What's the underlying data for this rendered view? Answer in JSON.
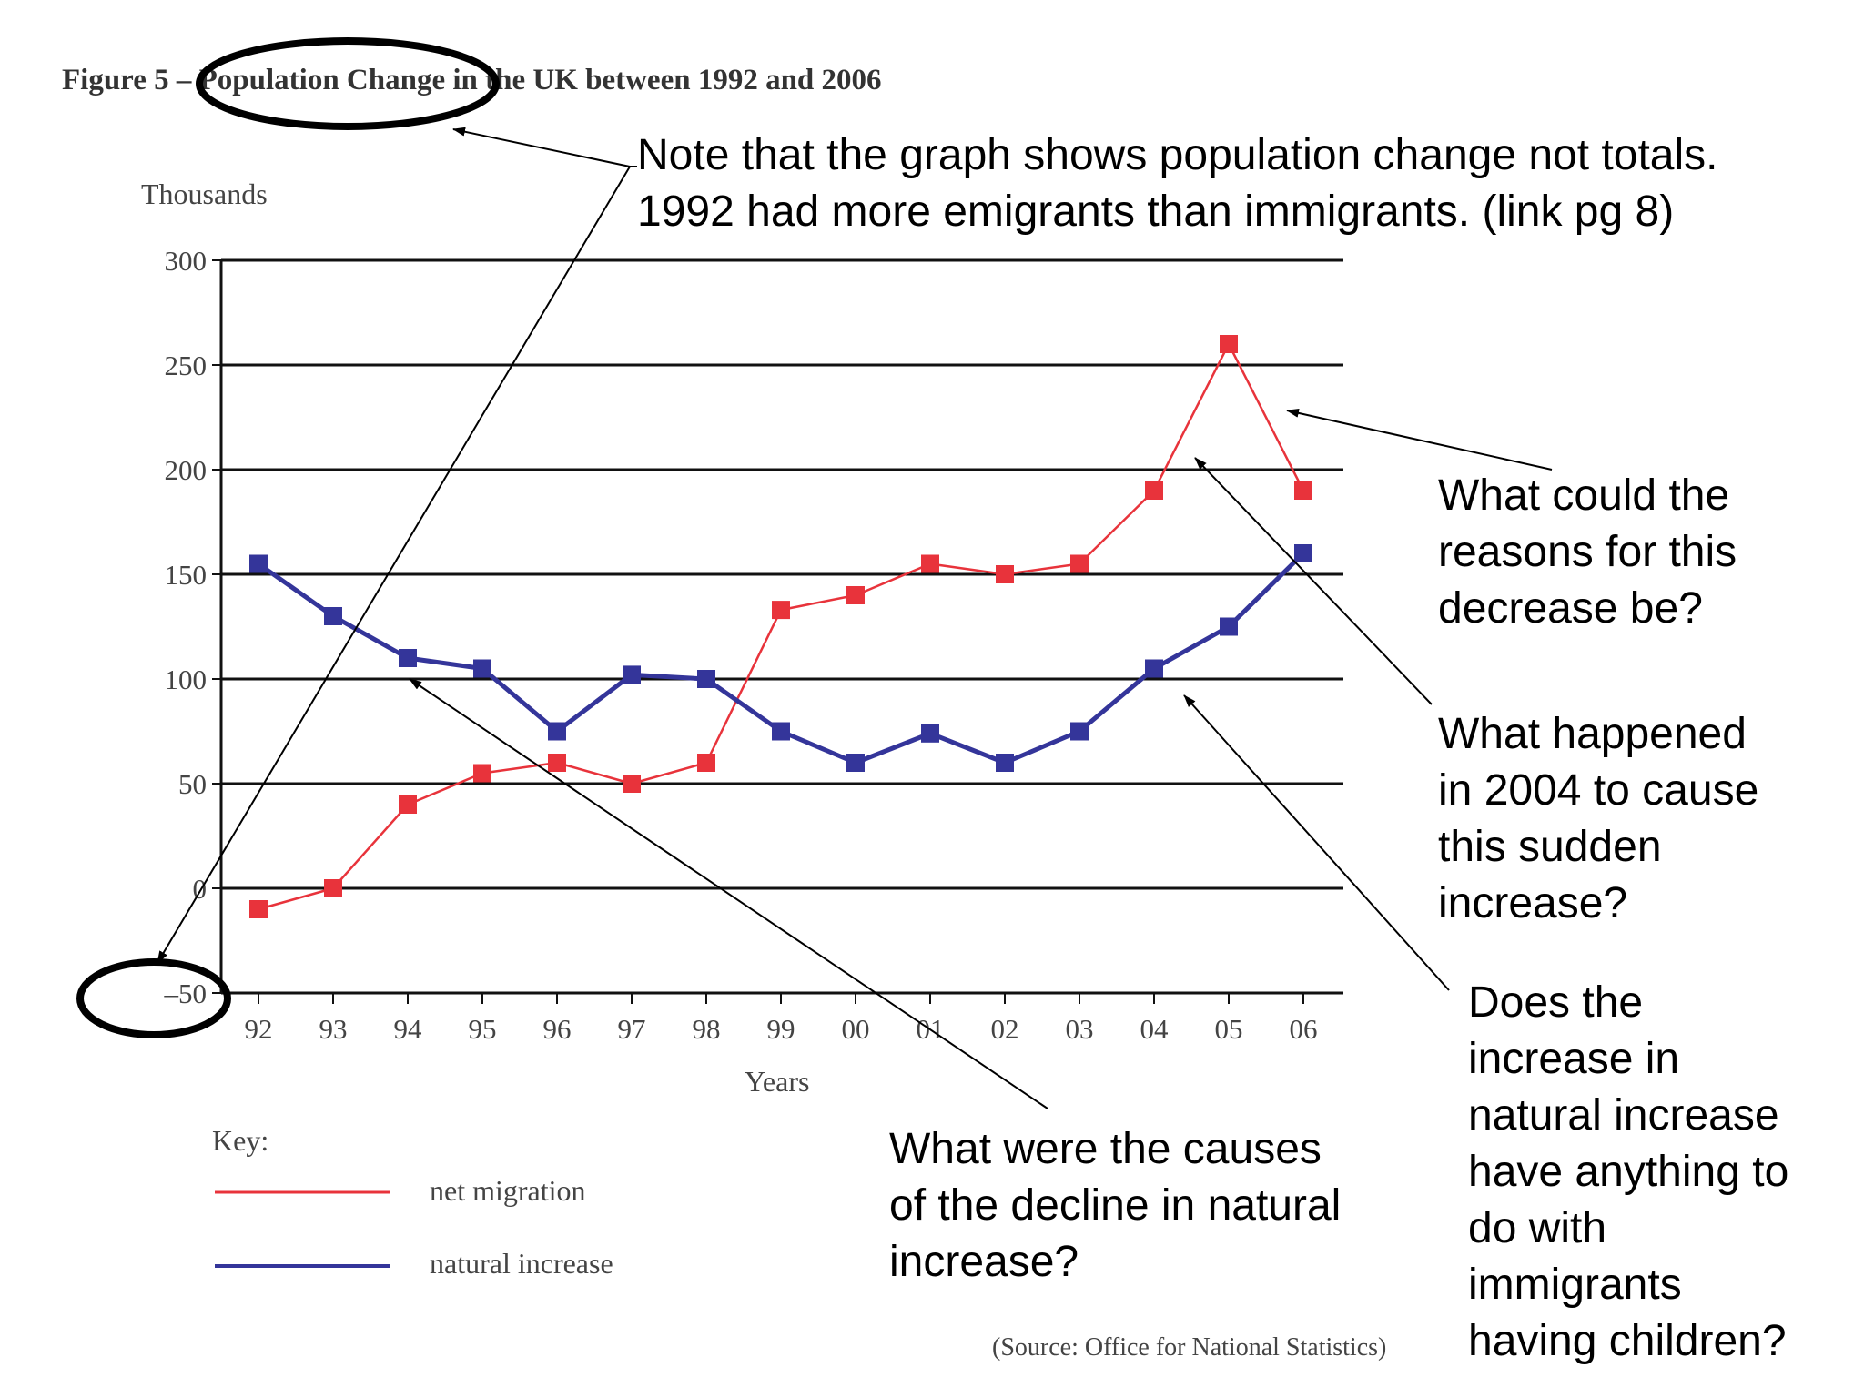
{
  "figure": {
    "title": "Figure 5 – Population Change in the UK between 1992 and 2006",
    "y_unit": "Thousands",
    "x_title": "Years",
    "key_title": "Key:",
    "source": "(Source: Office for National Statistics)"
  },
  "chart_data": {
    "type": "line",
    "title": "Figure 5 – Population Change in the UK between 1992 and 2006",
    "xlabel": "Years",
    "ylabel": "Thousands",
    "categories": [
      "92",
      "93",
      "94",
      "95",
      "96",
      "97",
      "98",
      "99",
      "00",
      "01",
      "02",
      "03",
      "04",
      "05",
      "06"
    ],
    "ylim": [
      -50,
      300
    ],
    "yticks": [
      -50,
      0,
      50,
      100,
      150,
      200,
      250,
      300
    ],
    "grid": true,
    "legend": "bottom-left",
    "series": [
      {
        "name": "net migration",
        "color": "#e8333b",
        "values": [
          -10,
          0,
          40,
          55,
          60,
          50,
          60,
          133,
          140,
          155,
          150,
          155,
          190,
          260,
          190
        ]
      },
      {
        "name": "natural increase",
        "color": "#34359a",
        "values": [
          155,
          130,
          110,
          105,
          75,
          102,
          100,
          75,
          60,
          74,
          60,
          75,
          105,
          125,
          160
        ]
      }
    ]
  },
  "annotations": {
    "note1": {
      "line1": "Note that the graph shows population change not totals.",
      "line2": "1992 had more emigrants than immigrants. (link pg 8)"
    },
    "q_decrease": {
      "line1": "What could the",
      "line2": "reasons for this",
      "line3": "decrease be?"
    },
    "q_2004": {
      "line1": "What happened",
      "line2": "in 2004 to cause",
      "line3": "this sudden",
      "line4": "increase?"
    },
    "q_children": {
      "line1": "Does the",
      "line2": "increase in",
      "line3": "natural increase",
      "line4": "have anything to",
      "line5": "do with",
      "line6": "immigrants",
      "line7": "having children?"
    },
    "q_decline": {
      "line1": "What were the causes",
      "line2": "of the decline in natural",
      "line3": "increase?"
    }
  }
}
